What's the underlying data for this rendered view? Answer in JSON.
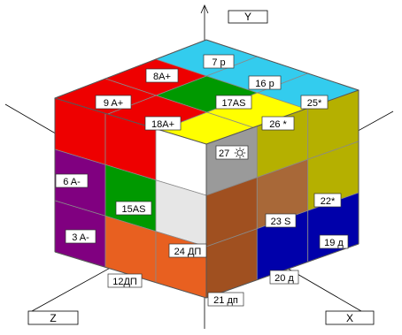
{
  "axes": {
    "y": "Y",
    "x": "X",
    "z": "Z"
  },
  "cubes": {
    "c7": "7 р",
    "c8": "8A+",
    "c9": "9 A+",
    "c16": "16 р",
    "c17": "17AS",
    "c18": "18A+",
    "c25": "25*",
    "c26": "26 *",
    "c27": "27",
    "c6": "6 A-",
    "c3": "3 A-",
    "c15": "15AS",
    "c12": "12ДП",
    "c24": "24 ДП",
    "c23": "23 S",
    "c22": "22*",
    "c19": "19 д",
    "c20": "20 д",
    "c21": "21 дп"
  },
  "colors": {
    "red": "#ee0000",
    "cyan": "#33ccee",
    "green": "#009900",
    "yellow": "#ffff00",
    "olive": "#b5b000",
    "orange": "#e86020",
    "brown": "#a05020",
    "tan": "#a86838",
    "navy": "#0000aa",
    "purple": "#800080",
    "white": "#ffffff",
    "gray": "#9a9a9a",
    "light_gray": "#e6e6e6"
  },
  "icons": {
    "sun": "sun-icon"
  }
}
